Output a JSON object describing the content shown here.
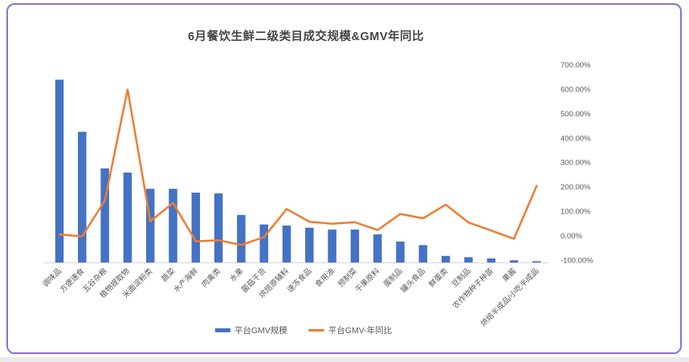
{
  "chart_data": {
    "type": "combo",
    "title": "6月餐饮生鲜二级类目成交规模&GMV年同比",
    "categories": [
      "调味品",
      "方便速食",
      "五谷杂粮",
      "植物提取物",
      "米面淀粉类",
      "蔬菜",
      "水产海鲜",
      "肉禽类",
      "水果",
      "菌菇干货",
      "烘焙原辅料",
      "速冻食品",
      "食用油",
      "预制菜",
      "干果原料",
      "蛋制品",
      "罐头食品",
      "鲜蛋类",
      "豆制品",
      "农作物种子种苗",
      "果酱",
      "烘焙半成品/小吃半成品"
    ],
    "series": [
      {
        "name": "平台GMV规模",
        "type": "bar",
        "axis": "left",
        "axis_visible": false,
        "unit": "relative-scale-max-100",
        "values": [
          100,
          71.5,
          51.5,
          49.2,
          40.3,
          40.3,
          38.2,
          37.8,
          26,
          20.8,
          20.2,
          19,
          18,
          18,
          15.4,
          11.4,
          9.5,
          3.6,
          2.9,
          2.2,
          1.2,
          0.7
        ]
      },
      {
        "name": "平台GMV-年同比",
        "type": "line",
        "axis": "right",
        "unit": "percent",
        "values": [
          6,
          -2,
          145,
          600,
          60,
          135,
          -22,
          -18,
          -37,
          -5,
          110,
          58,
          50,
          56,
          24,
          90,
          72,
          128,
          55,
          22,
          -12,
          205
        ]
      }
    ],
    "right_axis": {
      "ticks": [
        "700.00%",
        "600.00%",
        "500.00%",
        "400.00%",
        "300.00%",
        "200.00%",
        "100.00%",
        "0.00%",
        "-100.00%"
      ],
      "max": 700,
      "min": -100,
      "step": 100
    },
    "left_axis": {
      "visible": false
    },
    "grid": false,
    "legend_position": "bottom",
    "colors": {
      "bar": "#4472C4",
      "line": "#ED7D31",
      "title_text": "#464646",
      "axis_text": "#595959",
      "axis_line": "#D9D9D9",
      "card_border": "#8E6FD8"
    }
  },
  "legend": {
    "items": [
      {
        "label": "平台GMV规模",
        "marker": "bar-swatch",
        "color": "#4472C4"
      },
      {
        "label": "平台GMV-年同比",
        "marker": "line-swatch",
        "color": "#ED7D31"
      }
    ]
  }
}
